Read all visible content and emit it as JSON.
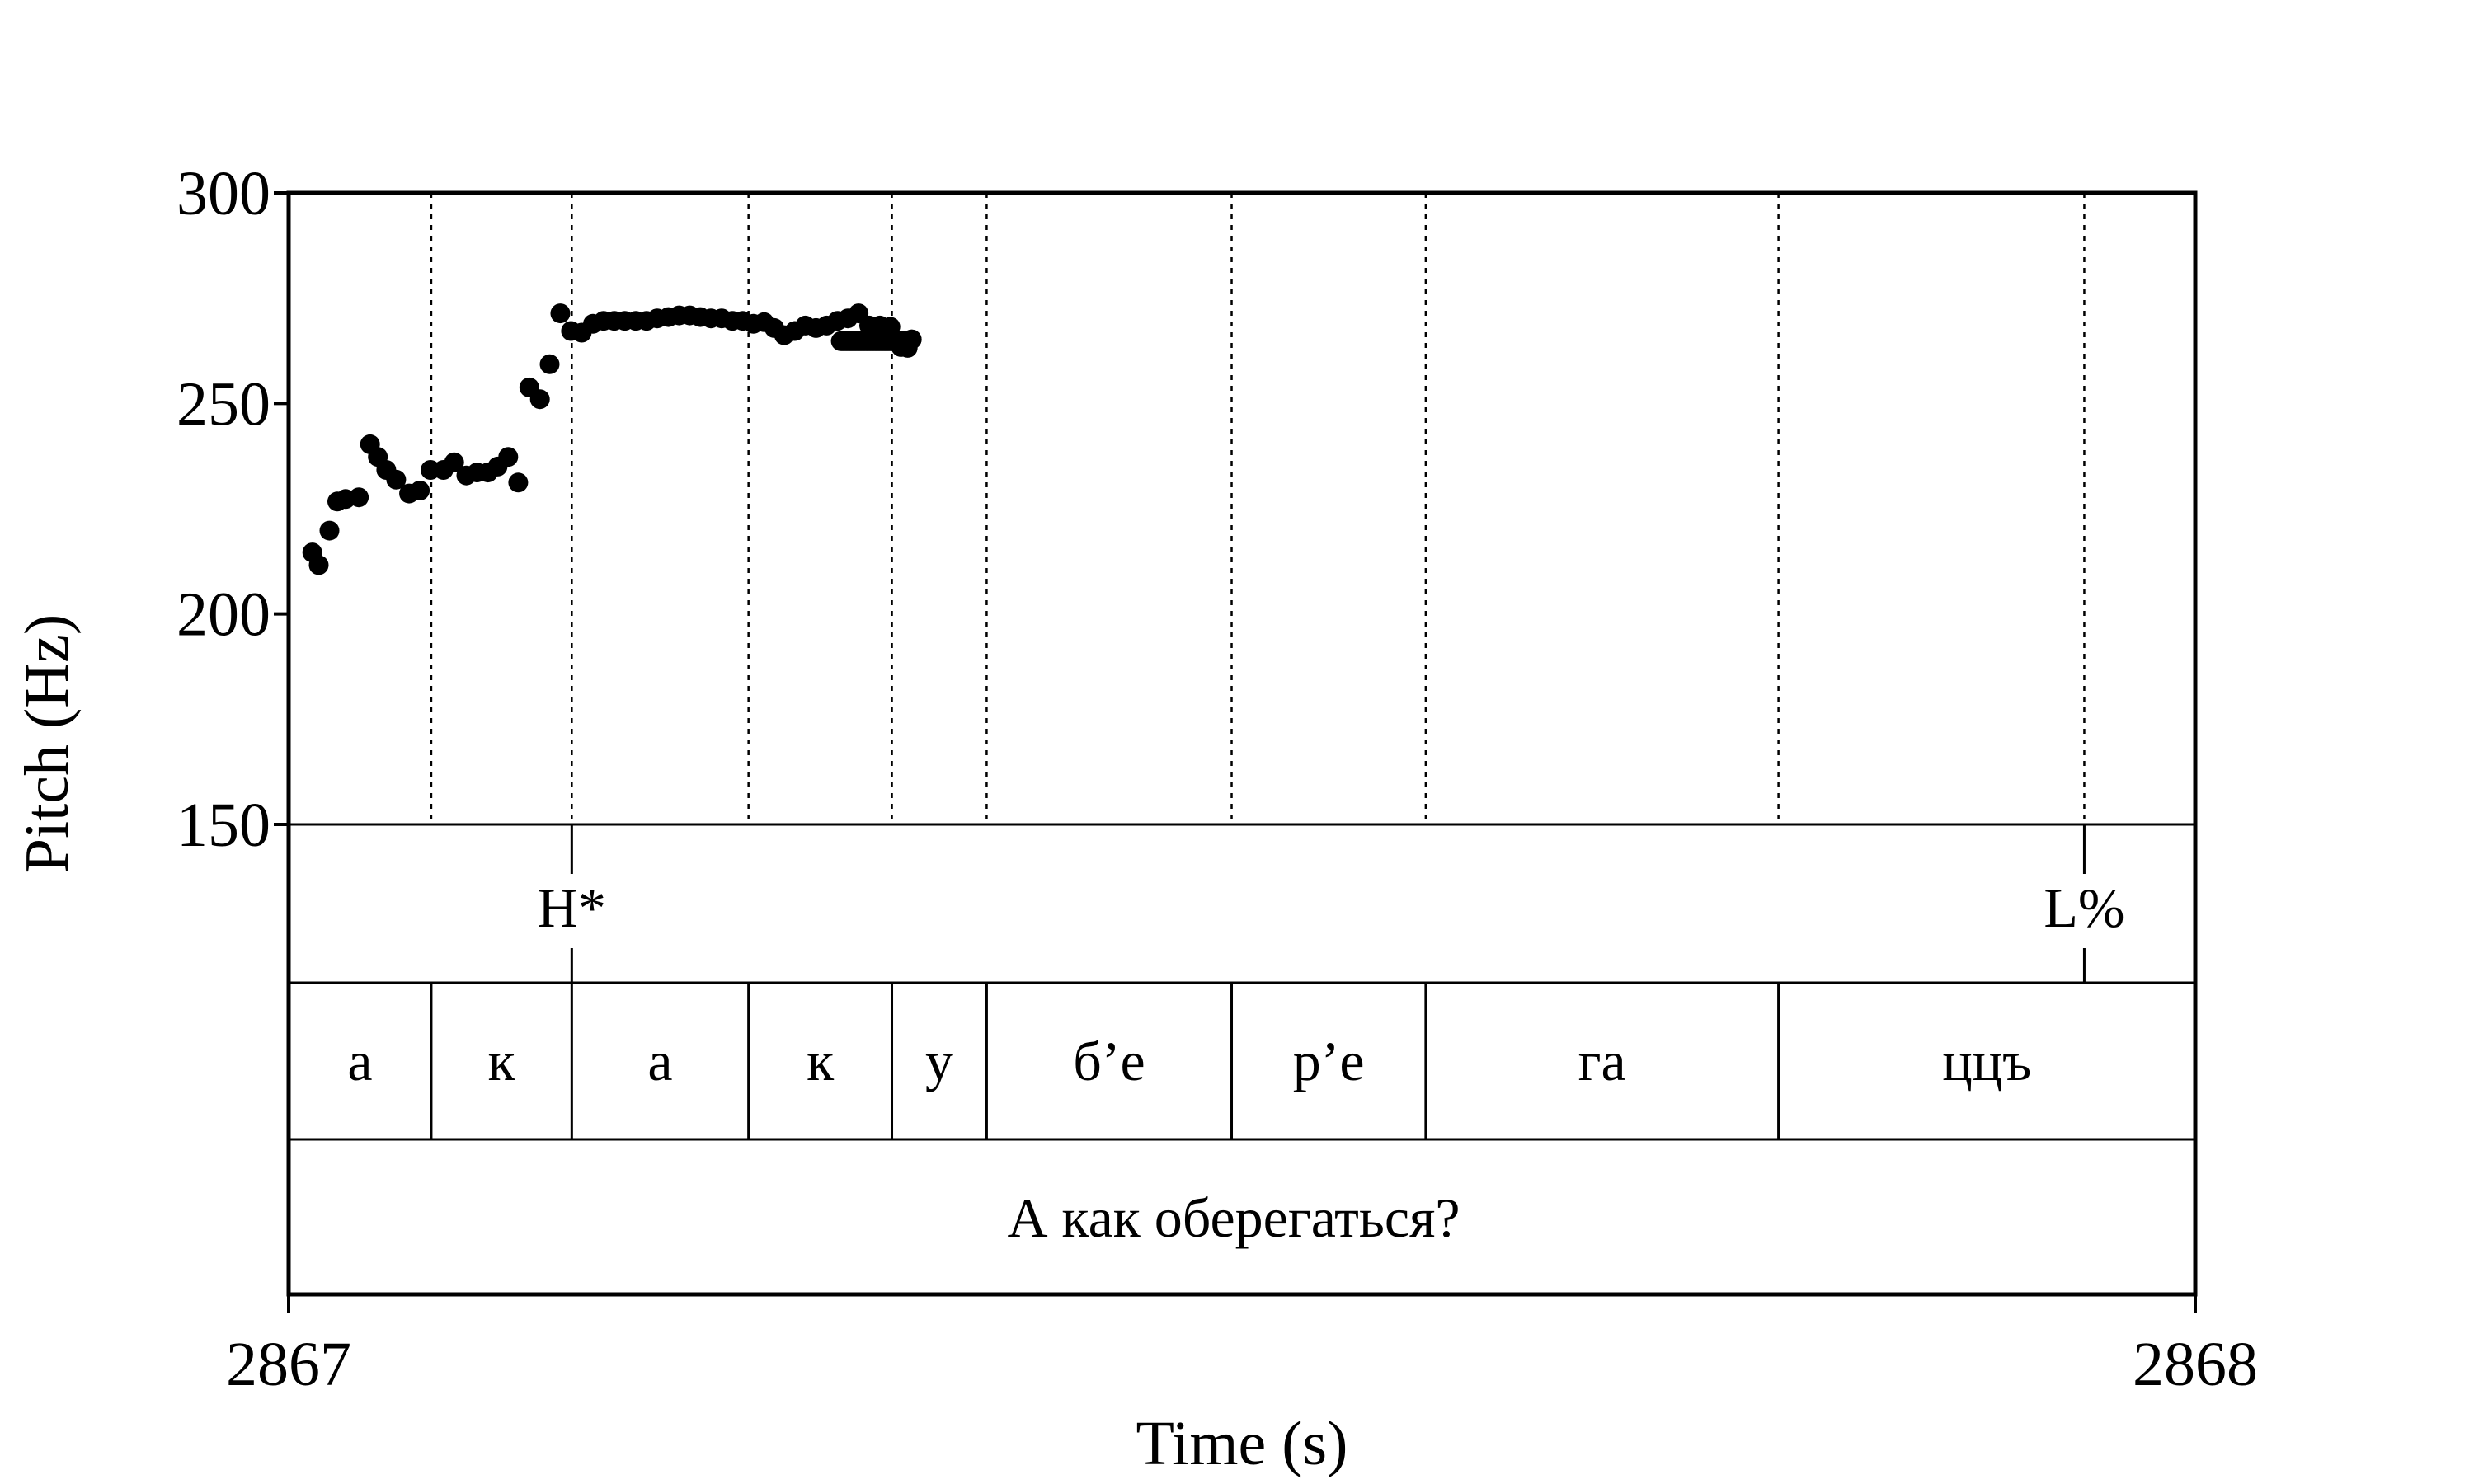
{
  "chart_data": {
    "type": "scatter",
    "xlabel": "Time (s)",
    "ylabel": "Pitch (Hz)",
    "xlim": [
      2867,
      2868
    ],
    "ylim": [
      150,
      300
    ],
    "x_ticks": [
      "2867",
      "2868"
    ],
    "y_ticks": [
      "150",
      "200",
      "250",
      "300"
    ],
    "grid": false,
    "series": [
      {
        "points": [
          [
            2867.0124,
            214.6
          ],
          [
            2867.0158,
            211.6
          ],
          [
            2867.0214,
            219.8
          ],
          [
            2867.0255,
            226.7
          ],
          [
            2867.0299,
            227.3
          ],
          [
            2867.0368,
            227.7
          ],
          [
            2867.0427,
            240.3
          ],
          [
            2867.0468,
            237.3
          ],
          [
            2867.0512,
            234.2
          ],
          [
            2867.0564,
            231.9
          ],
          [
            2867.0632,
            228.6
          ],
          [
            2867.0688,
            229.3
          ],
          [
            2867.0744,
            234.2
          ],
          [
            2867.0812,
            234.2
          ],
          [
            2867.0868,
            236.0
          ],
          [
            2867.0932,
            232.9
          ],
          [
            2867.0988,
            233.6
          ],
          [
            2867.1045,
            233.6
          ],
          [
            2867.1096,
            235.0
          ],
          [
            2867.1152,
            237.3
          ],
          [
            2867.1204,
            231.2
          ],
          [
            2867.1262,
            253.8
          ],
          [
            2867.1318,
            251.0
          ],
          [
            2867.1369,
            259.3
          ],
          [
            2867.1425,
            271.4
          ],
          [
            2867.1481,
            267.2
          ],
          [
            2867.1537,
            266.8
          ],
          [
            2867.1596,
            268.9
          ],
          [
            2867.1652,
            269.6
          ],
          [
            2867.1708,
            269.6
          ],
          [
            2867.1763,
            269.6
          ],
          [
            2867.1821,
            269.6
          ],
          [
            2867.1877,
            269.6
          ],
          [
            2867.1933,
            270.2
          ],
          [
            2867.1992,
            270.5
          ],
          [
            2867.2048,
            270.9
          ],
          [
            2867.2104,
            270.9
          ],
          [
            2867.2159,
            270.5
          ],
          [
            2867.2215,
            270.2
          ],
          [
            2867.2271,
            270.2
          ],
          [
            2867.2327,
            269.6
          ],
          [
            2867.2382,
            269.6
          ],
          [
            2867.2438,
            268.9
          ],
          [
            2867.2494,
            269.3
          ],
          [
            2867.2547,
            267.9
          ],
          [
            2867.2599,
            266.2
          ],
          [
            2867.2655,
            267.2
          ],
          [
            2867.271,
            268.5
          ],
          [
            2867.2766,
            267.9
          ],
          [
            2867.2822,
            268.5
          ],
          [
            2867.2878,
            269.6
          ],
          [
            2867.2933,
            270.2
          ],
          [
            2867.2989,
            271.4
          ],
          [
            2867.3045,
            268.5
          ],
          [
            2867.3101,
            268.5
          ],
          [
            2867.3156,
            268.2
          ],
          [
            2867.3212,
            263.4
          ],
          [
            2867.3268,
            265.2
          ],
          [
            2867.3247,
            263.2
          ],
          [
            2867.326,
            265.0
          ],
          [
            2867.3258,
            265.0
          ],
          [
            2867.3253,
            264.9
          ],
          [
            2867.3255,
            264.9
          ],
          [
            2867.3254,
            264.9
          ],
          [
            2867.3258,
            264.9
          ],
          [
            2867.3252,
            264.9
          ],
          [
            2867.3244,
            264.9
          ],
          [
            2867.3242,
            264.9
          ],
          [
            2867.324,
            264.9
          ],
          [
            2867.3238,
            264.9
          ],
          [
            2867.3236,
            264.9
          ],
          [
            2867.3234,
            264.9
          ],
          [
            2867.3232,
            264.9
          ],
          [
            2867.323,
            264.9
          ],
          [
            2867.3228,
            264.9
          ],
          [
            2867.3226,
            264.9
          ],
          [
            2867.3224,
            264.9
          ],
          [
            2867.3222,
            264.9
          ],
          [
            2867.322,
            264.9
          ],
          [
            2867.3218,
            264.9
          ],
          [
            2867.3216,
            264.9
          ],
          [
            2867.3214,
            264.9
          ],
          [
            2867.3212,
            264.9
          ],
          [
            2867.321,
            264.9
          ],
          [
            2867.3208,
            264.9
          ],
          [
            2867.3206,
            264.9
          ],
          [
            2867.3204,
            264.9
          ],
          [
            2867.3202,
            264.9
          ],
          [
            2867.32,
            264.9
          ],
          [
            2867.3268,
            265.2
          ],
          [
            2867.323,
            263.6
          ]
        ]
      },
      {
        "points": [
          [
            2867.325,
            264.8
          ],
          [
            2867.3244,
            264.8
          ],
          [
            2867.3238,
            264.8
          ],
          [
            2867.3232,
            264.8
          ],
          [
            2867.3226,
            264.8
          ],
          [
            2867.322,
            264.8
          ],
          [
            2867.3214,
            264.8
          ],
          [
            2867.3208,
            264.8
          ],
          [
            2867.3202,
            264.8
          ],
          [
            2867.3196,
            264.8
          ],
          [
            2867.319,
            264.8
          ],
          [
            2867.3184,
            264.8
          ],
          [
            2867.3178,
            264.8
          ],
          [
            2867.3172,
            264.8
          ],
          [
            2867.3166,
            264.8
          ],
          [
            2867.316,
            264.8
          ],
          [
            2867.3154,
            264.8
          ],
          [
            2867.3148,
            264.8
          ],
          [
            2867.3142,
            264.8
          ],
          [
            2867.3136,
            264.8
          ],
          [
            2867.313,
            264.8
          ],
          [
            2867.3124,
            264.8
          ],
          [
            2867.3118,
            264.8
          ],
          [
            2867.3112,
            264.8
          ],
          [
            2867.3106,
            264.8
          ],
          [
            2867.31,
            264.8
          ],
          [
            2867.3094,
            264.8
          ],
          [
            2867.3088,
            264.8
          ],
          [
            2867.3082,
            264.8
          ],
          [
            2867.3076,
            264.8
          ],
          [
            2867.307,
            264.8
          ],
          [
            2867.3064,
            264.8
          ],
          [
            2867.3058,
            264.8
          ],
          [
            2867.3052,
            264.8
          ],
          [
            2867.3046,
            264.8
          ],
          [
            2867.304,
            264.8
          ],
          [
            2867.3034,
            264.8
          ],
          [
            2867.3028,
            264.8
          ],
          [
            2867.3022,
            264.8
          ],
          [
            2867.3016,
            264.8
          ],
          [
            2867.301,
            264.8
          ],
          [
            2867.3004,
            264.8
          ],
          [
            2867.2998,
            264.8
          ],
          [
            2867.2992,
            264.8
          ],
          [
            2867.2986,
            264.8
          ],
          [
            2867.298,
            264.8
          ],
          [
            2867.2974,
            264.8
          ],
          [
            2867.2968,
            264.8
          ],
          [
            2867.2962,
            264.8
          ],
          [
            2867.2956,
            264.8
          ],
          [
            2867.295,
            264.8
          ],
          [
            2867.2944,
            264.8
          ],
          [
            2867.2938,
            264.8
          ],
          [
            2867.2932,
            264.8
          ],
          [
            2867.2926,
            264.8
          ],
          [
            2867.292,
            264.8
          ],
          [
            2867.2914,
            264.8
          ],
          [
            2867.2908,
            264.8
          ],
          [
            2867.2902,
            264.8
          ],
          [
            2867.2896,
            264.8
          ]
        ]
      }
    ],
    "tiers": {
      "tones": [
        {
          "label": "H*",
          "x": 2867.1485
        },
        {
          "label": "L%",
          "x": 2867.9418
        }
      ],
      "syllables": [
        {
          "label": "а",
          "start": 2867.0,
          "end": 2867.0748
        },
        {
          "label": "к",
          "start": 2867.0748,
          "end": 2867.1485
        },
        {
          "label": "а",
          "start": 2867.1485,
          "end": 2867.2412
        },
        {
          "label": "к",
          "start": 2867.2412,
          "end": 2867.3164
        },
        {
          "label": "у",
          "start": 2867.3164,
          "end": 2867.3661
        },
        {
          "label": "б’е",
          "start": 2867.3661,
          "end": 2867.4946
        },
        {
          "label": "р’е",
          "start": 2867.4946,
          "end": 2867.5964
        },
        {
          "label": "га",
          "start": 2867.5964,
          "end": 2867.7814
        },
        {
          "label": "ццъ",
          "start": 2867.7814,
          "end": 2868.0
        }
      ],
      "sentence": "А как оберегаться?"
    }
  }
}
